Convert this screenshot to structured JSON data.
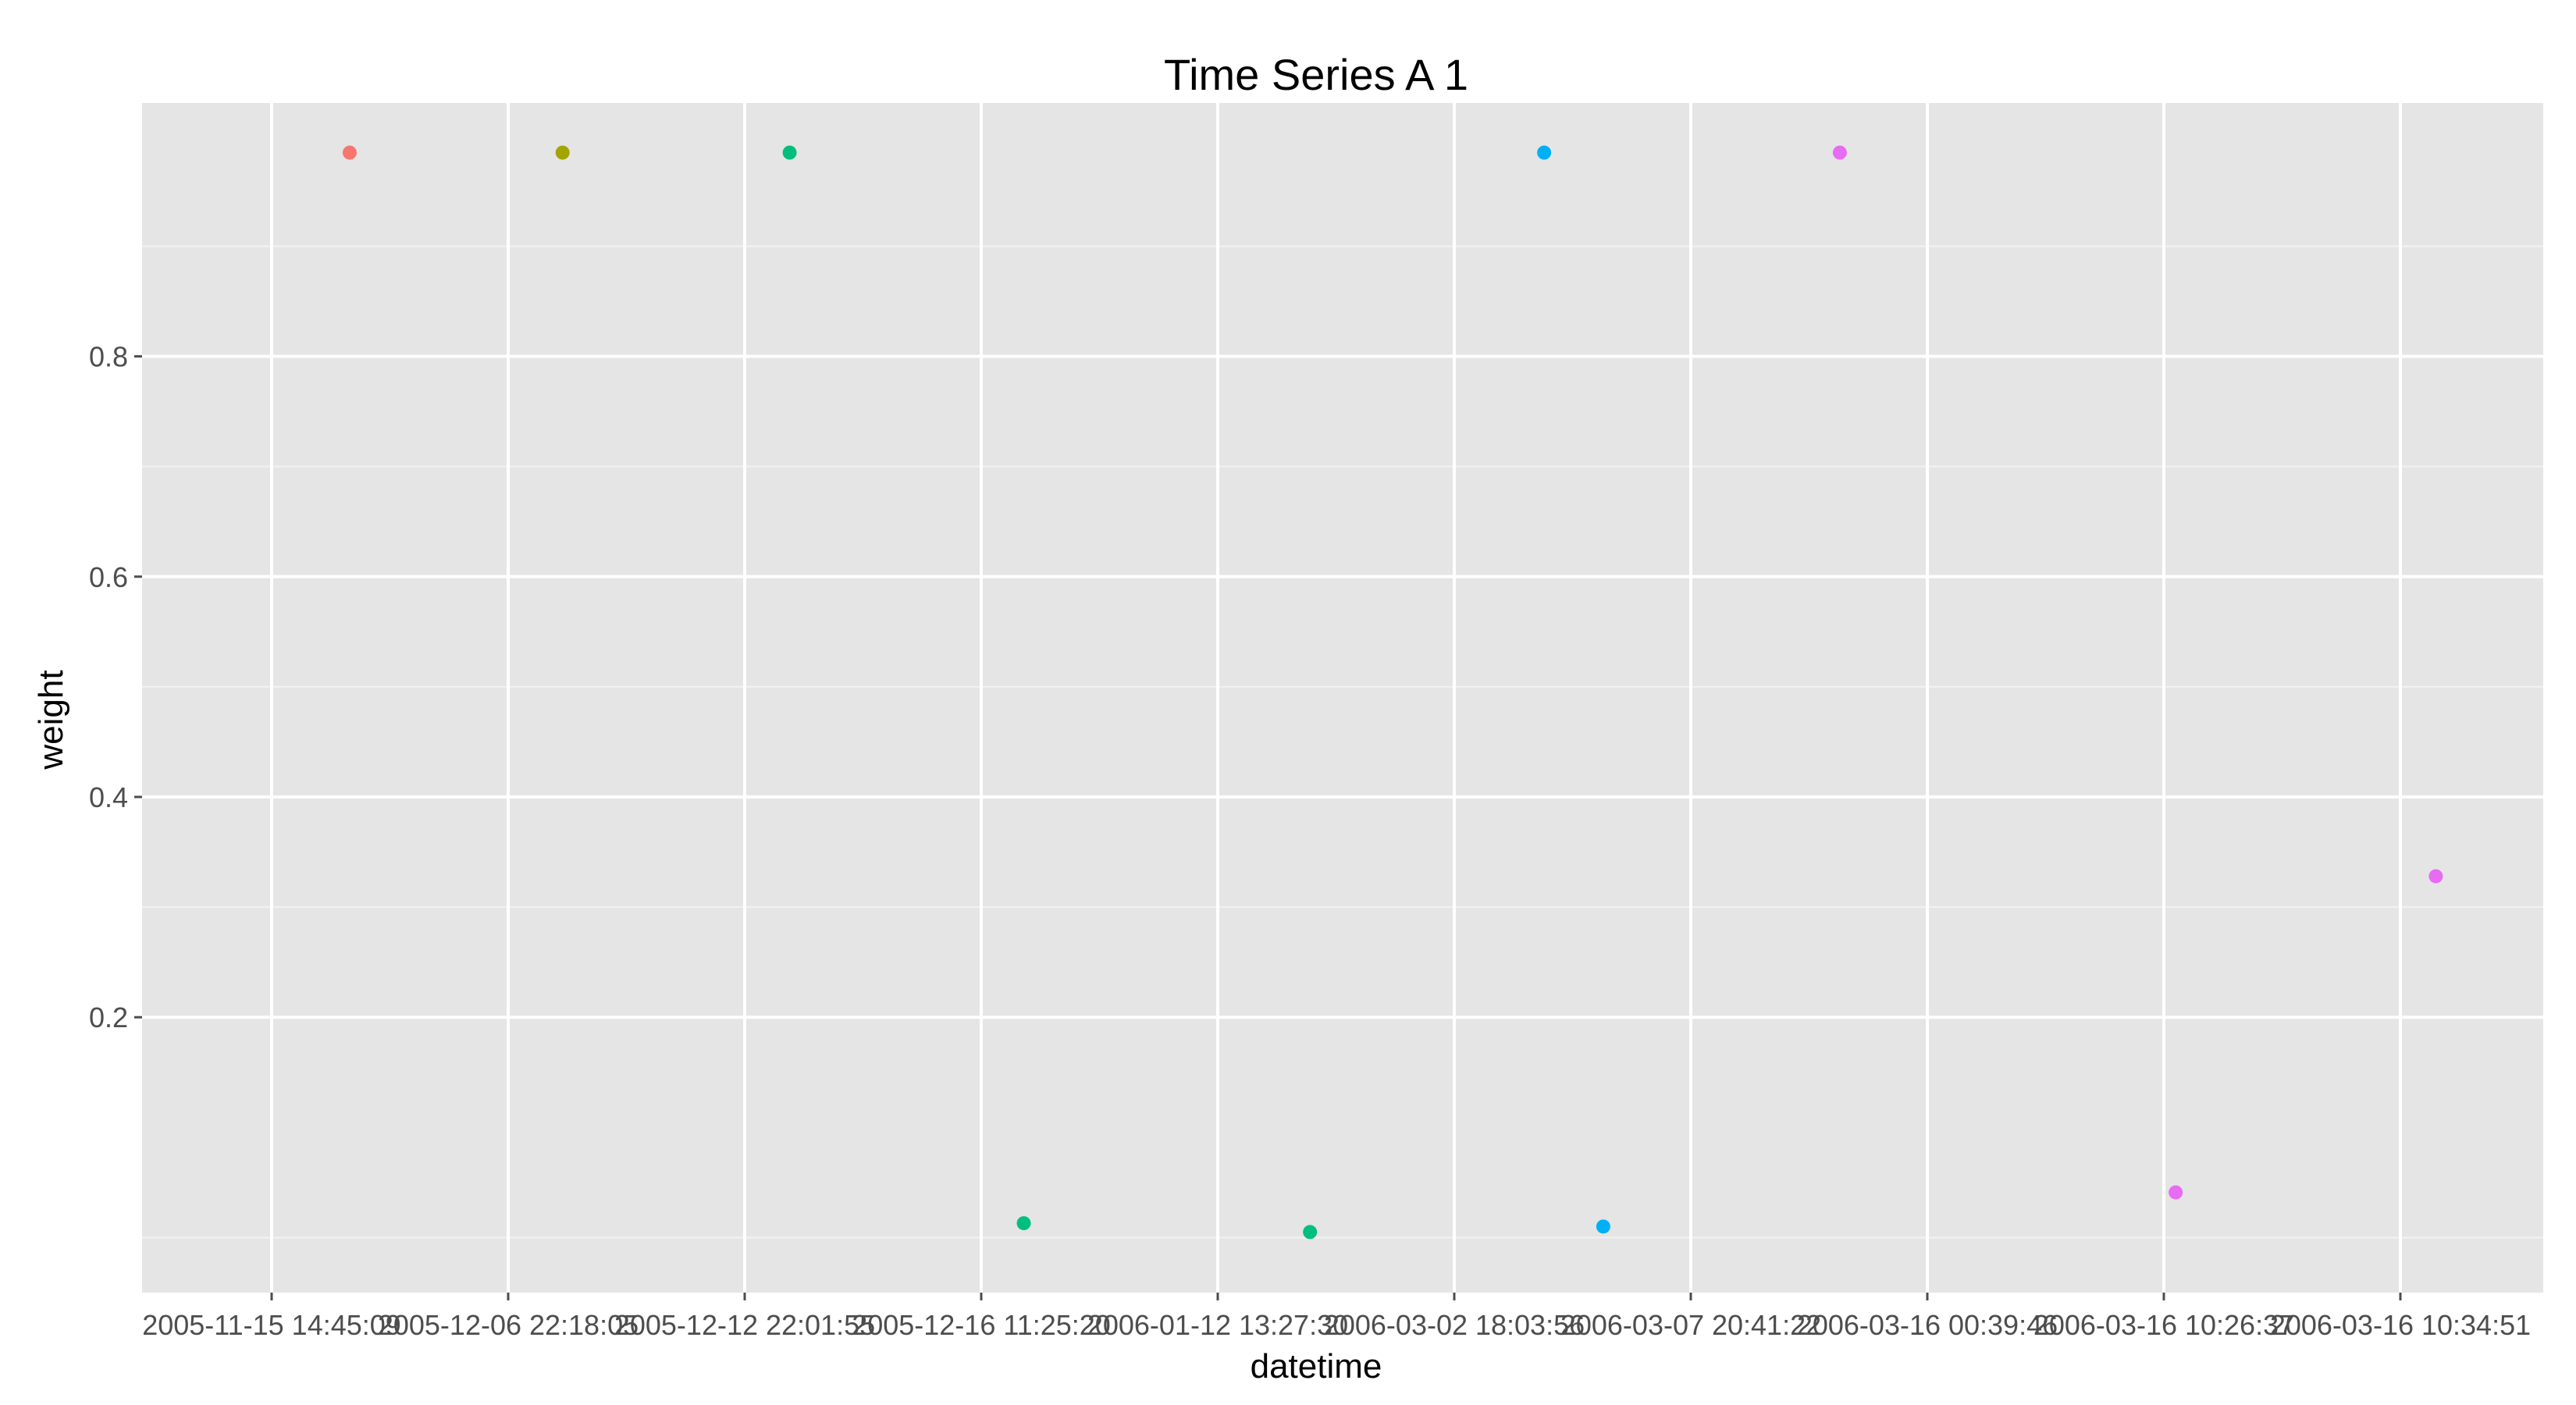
{
  "chart_data": {
    "type": "scatter",
    "title": "Time Series A 1",
    "xlabel": "datetime",
    "ylabel": "weight",
    "x_ticks": [
      "2005-11-15 14:45:09",
      "2005-12-06 22:18:05",
      "2005-12-12 22:01:55",
      "2005-12-16 11:25:20",
      "2006-01-12 13:27:30",
      "2006-03-02 18:03:56",
      "2006-03-07 20:41:22",
      "2006-03-16 00:39:46",
      "2006-03-16 10:26:37",
      "2006-03-16 10:34:51"
    ],
    "y_ticks": [
      "0.2",
      "0.4",
      "0.6",
      "0.8"
    ],
    "ylim": [
      -0.05,
      1.03
    ],
    "grid": true,
    "legend": "none",
    "points": [
      {
        "x_index": 0.33,
        "y": 0.985,
        "color": "#F8766D"
      },
      {
        "x_index": 1.23,
        "y": 0.985,
        "color": "#A3A500"
      },
      {
        "x_index": 2.19,
        "y": 0.985,
        "color": "#00BF7D"
      },
      {
        "x_index": 3.18,
        "y": 0.013,
        "color": "#00BF7D"
      },
      {
        "x_index": 4.39,
        "y": 0.005,
        "color": "#00BF7D"
      },
      {
        "x_index": 5.38,
        "y": 0.985,
        "color": "#00B0F6"
      },
      {
        "x_index": 5.63,
        "y": 0.01,
        "color": "#00B0F6"
      },
      {
        "x_index": 6.63,
        "y": 0.985,
        "color": "#E76BF3"
      },
      {
        "x_index": 8.05,
        "y": 0.041,
        "color": "#E76BF3"
      },
      {
        "x_index": 9.15,
        "y": 0.328,
        "color": "#E76BF3"
      }
    ]
  }
}
